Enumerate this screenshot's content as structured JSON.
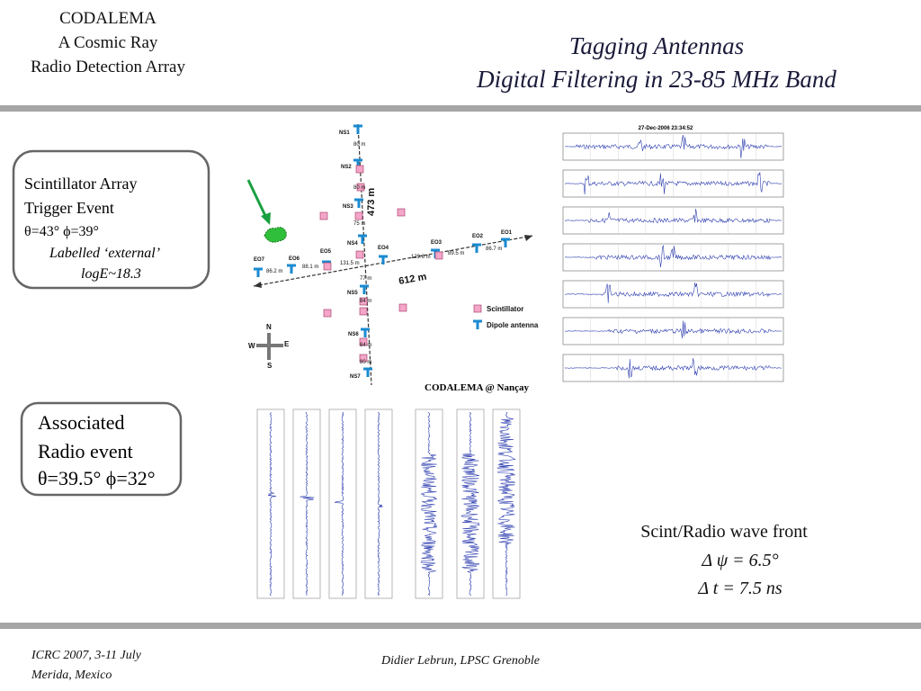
{
  "header": {
    "left_lines": [
      "CODALEMA",
      "A Cosmic Ray",
      "Radio Detection Array"
    ],
    "title_lines": [
      "Tagging Antennas",
      "Digital Filtering in 23-85 MHz Band"
    ]
  },
  "scintillator_box": {
    "lines": [
      "Scintillator Array",
      "Trigger Event",
      "θ=43°  ϕ=39°",
      "Labelled ‘external’",
      "logE~18.3"
    ]
  },
  "radio_box": {
    "lines": [
      "Associated",
      "Radio event",
      "θ=39.5° ϕ=32°"
    ]
  },
  "map": {
    "antennas": [
      "NS1",
      "NS2",
      "NS3",
      "NS4",
      "NS5",
      "NS6",
      "NS7",
      "EO1",
      "EO2",
      "EO3",
      "EO4",
      "EO5",
      "EO6",
      "EO7"
    ],
    "distances": [
      "80 m",
      "80 m",
      "75 m",
      "77 m",
      "84 m",
      "84 m",
      "80 m",
      "129.6 m",
      "89.5 m",
      "86.7 m",
      "88.1 m",
      "131.5 m",
      "86.2 m"
    ],
    "ns_length": "473 m",
    "eo_length": "612 m",
    "legend": [
      "Scintillator",
      "Dipole antenna"
    ],
    "compass": [
      "N",
      "W",
      "E",
      "S"
    ],
    "caption": "CODALEMA @ Nançay"
  },
  "waveform_header": "27-Dec-2006 23:34:52",
  "wavefront": {
    "lines": [
      "Scint/Radio  wave front",
      "Δ ψ = 6.5°",
      "Δ t = 7.5 ns"
    ]
  },
  "footer": {
    "left_lines": [
      "ICRC 2007, 3-11 July",
      "Merida, Mexico"
    ],
    "center": "Didier Lebrun, LPSC Grenoble"
  }
}
